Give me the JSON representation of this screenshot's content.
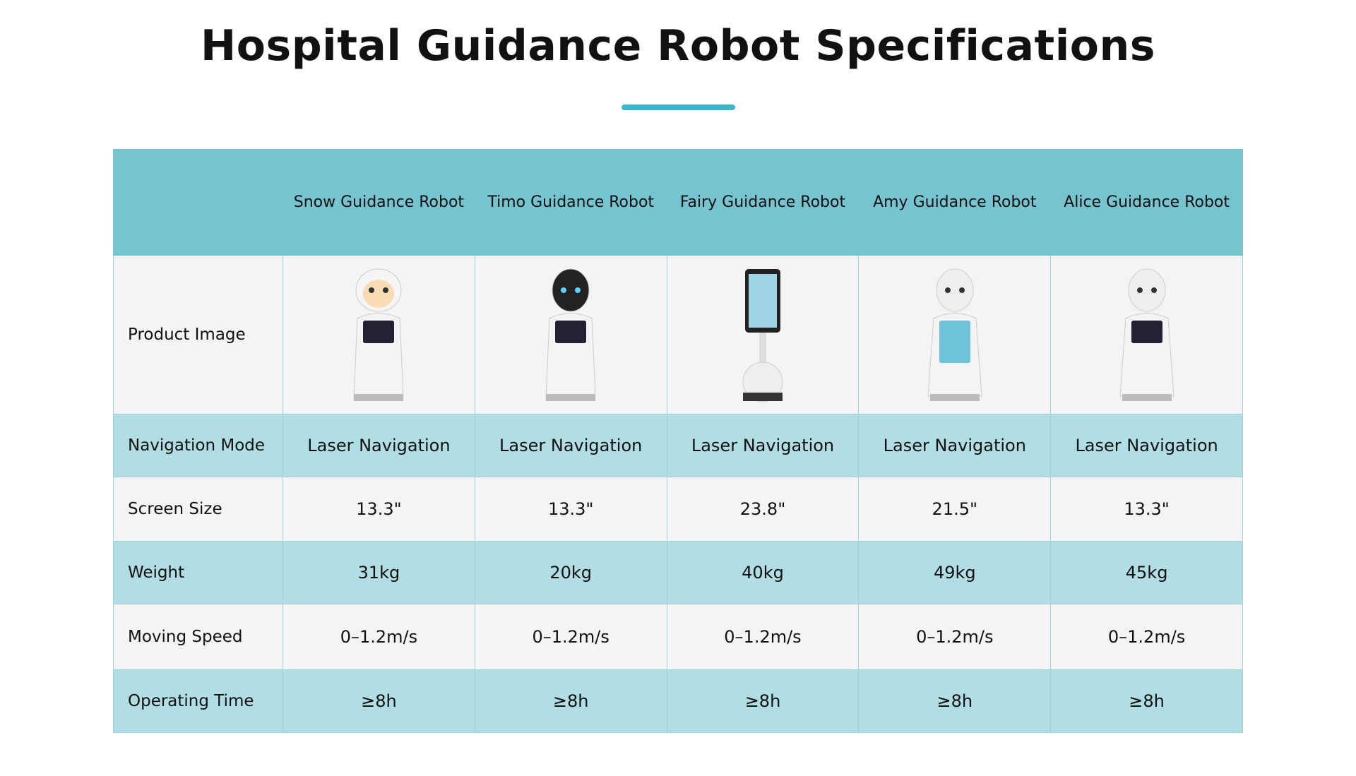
{
  "header": {
    "title": "Hospital Guidance Robot Specifications"
  },
  "table": {
    "columns": [
      "Snow Guidance Robot",
      "Timo Guidance Robot",
      "Fairy Guidance Robot",
      "Amy Guidance Robot",
      "Alice Guidance Robot"
    ],
    "rows": [
      {
        "label": "Product Image"
      },
      {
        "label": "Navigation Mode",
        "cells": [
          "Laser Navigation",
          "Laser Navigation",
          "Laser Navigation",
          "Laser Navigation",
          "Laser Navigation"
        ]
      },
      {
        "label": "Screen Size",
        "cells": [
          "13.3\"",
          "13.3\"",
          "23.8\"",
          "21.5\"",
          "13.3\""
        ]
      },
      {
        "label": "Weight",
        "cells": [
          "31kg",
          "20kg",
          "40kg",
          "49kg",
          "45kg"
        ]
      },
      {
        "label": "Moving Speed",
        "cells": [
          "0–1.2m/s",
          "0–1.2m/s",
          "0–1.2m/s",
          "0–1.2m/s",
          "0–1.2m/s"
        ]
      },
      {
        "label": "Operating Time",
        "cells": [
          "≥8h",
          "≥8h",
          "≥8h",
          "≥8h",
          "≥8h"
        ]
      }
    ]
  }
}
